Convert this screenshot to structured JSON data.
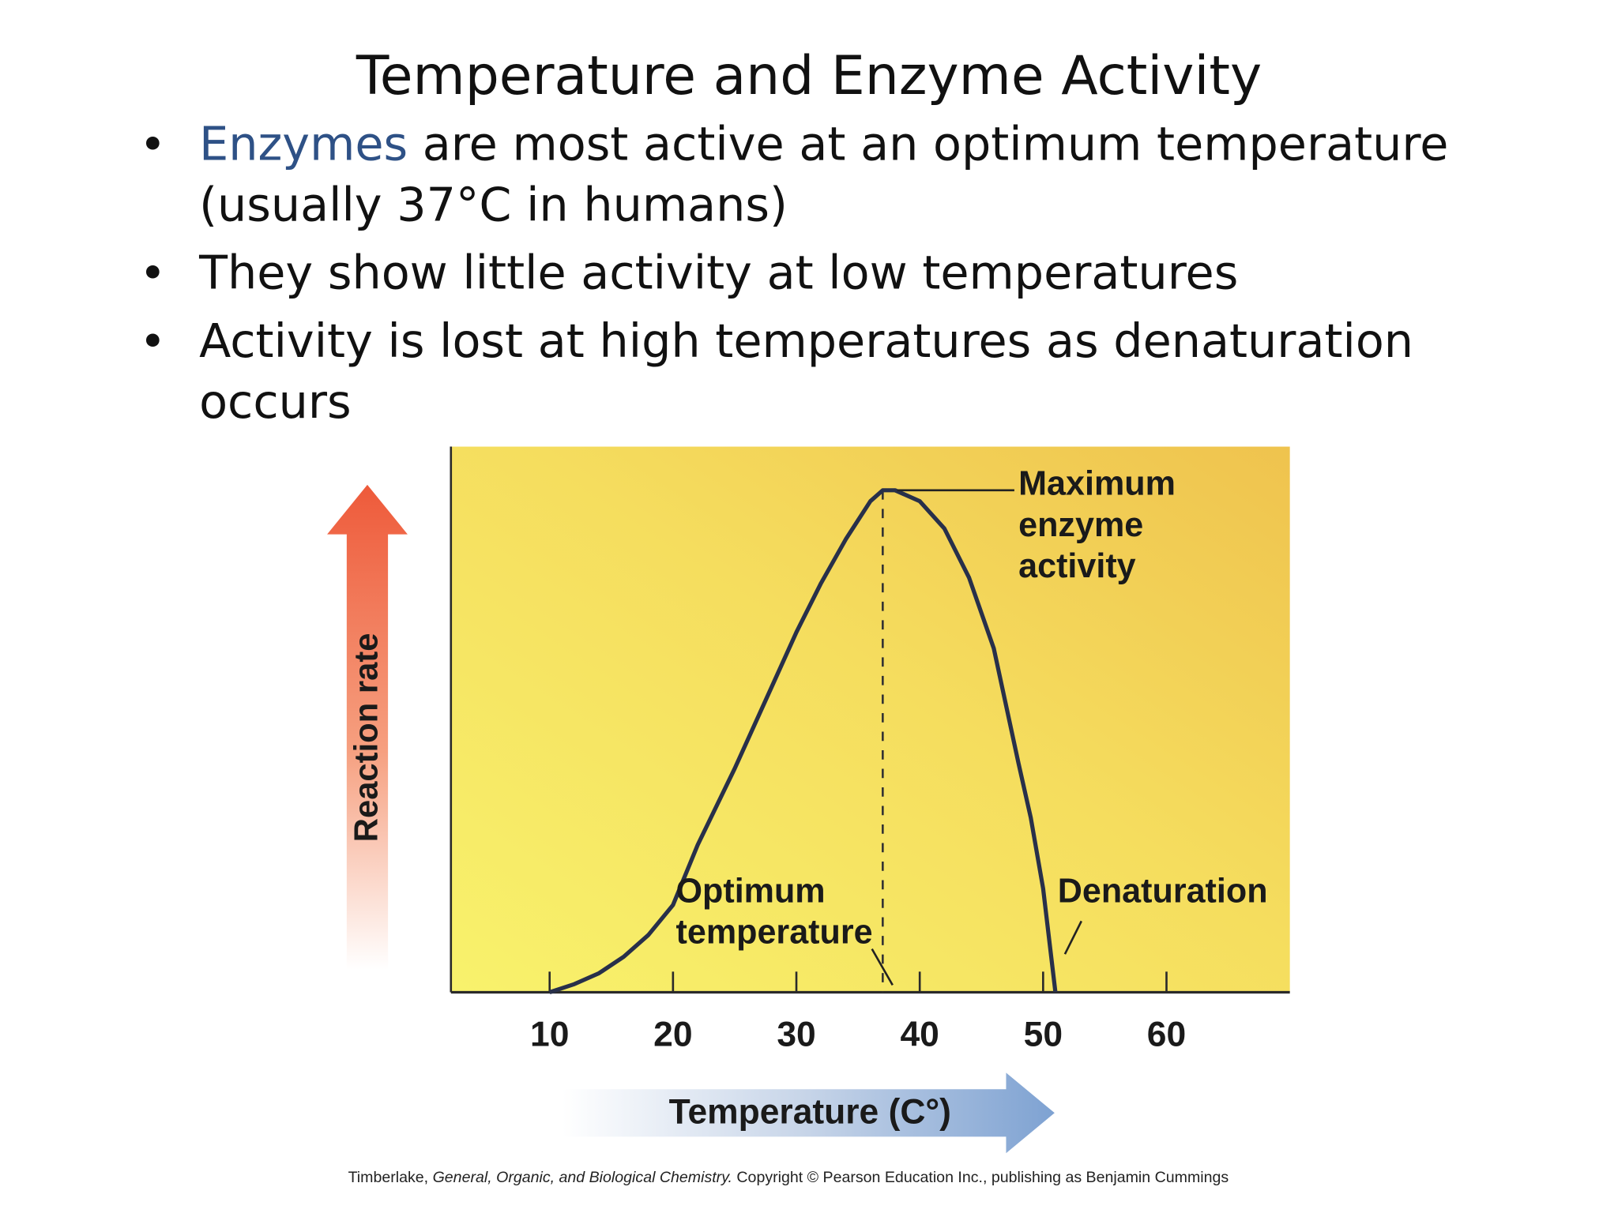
{
  "slide": {
    "title": "Temperature and Enzyme Activity",
    "bullets": [
      {
        "term": "Enzymes",
        "lines": [
          "are most active at an optimum temperature",
          "(usually  37°C in humans)"
        ]
      },
      {
        "lines": [
          "They show little activity at low temperatures"
        ]
      },
      {
        "lines": [
          "Activity is lost at high temperatures as denaturation",
          "occurs"
        ]
      }
    ],
    "credit": {
      "author": "Timberlake,",
      "book": "General, Organic, and Biological Chemistry.",
      "rest": "Copyright © Pearson Education Inc., publishing as Benjamin Cummings"
    }
  },
  "chart_data": {
    "type": "line",
    "x_label": "Temperature (C°)",
    "y_label": "Reaction rate",
    "x": [
      10,
      12,
      14,
      16,
      18,
      20,
      22,
      25,
      28,
      30,
      32,
      34,
      36,
      37,
      38,
      40,
      42,
      44,
      46,
      48,
      49,
      50,
      51
    ],
    "values": [
      0,
      1.5,
      3.5,
      6.5,
      10.5,
      16,
      27,
      41,
      56,
      66,
      75,
      83,
      90,
      92,
      92,
      90,
      85,
      76,
      63,
      42,
      32,
      19,
      0
    ],
    "color": "#28304a",
    "xlim": [
      2,
      70
    ],
    "ylim": [
      0,
      100
    ],
    "xticks": [
      10,
      20,
      30,
      40,
      50,
      60
    ],
    "annotations": {
      "maximum": [
        "Maximum",
        "enzyme",
        "activity"
      ],
      "optimum": [
        "Optimum",
        "temperature"
      ],
      "denaturation": "Denaturation"
    }
  }
}
